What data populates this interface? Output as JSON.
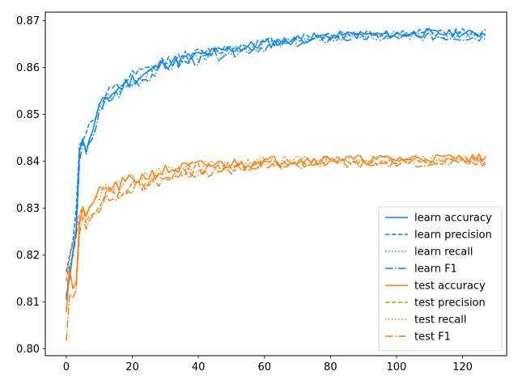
{
  "chart_data": {
    "type": "line",
    "title": "",
    "xlabel": "",
    "ylabel": "",
    "xlim": [
      -6.35,
      133.35
    ],
    "ylim": [
      0.7985,
      0.8718
    ],
    "grid": false,
    "legend_position": "lower-right",
    "x_ticks": [
      0,
      20,
      40,
      60,
      80,
      100,
      120
    ],
    "x_tick_labels": [
      "0",
      "20",
      "40",
      "60",
      "80",
      "100",
      "120"
    ],
    "y_ticks": [
      0.8,
      0.81,
      0.82,
      0.83,
      0.84,
      0.85,
      0.86,
      0.87
    ],
    "y_tick_labels": [
      "0.80",
      "0.81",
      "0.82",
      "0.83",
      "0.84",
      "0.85",
      "0.86",
      "0.87"
    ],
    "x_count": 128,
    "series": [
      {
        "name": "learn accuracy",
        "color": "#0a84f0",
        "style": "solid",
        "seed": 11,
        "offset": 0.0,
        "anchors": [
          [
            0,
            0.811
          ],
          [
            1,
            0.815
          ],
          [
            2,
            0.821
          ],
          [
            3,
            0.826
          ],
          [
            4,
            0.842
          ],
          [
            5,
            0.845
          ],
          [
            6,
            0.842
          ],
          [
            8,
            0.847
          ],
          [
            10,
            0.851
          ],
          [
            12,
            0.8535
          ],
          [
            15,
            0.855
          ],
          [
            20,
            0.8575
          ],
          [
            25,
            0.859
          ],
          [
            30,
            0.861
          ],
          [
            40,
            0.8625
          ],
          [
            50,
            0.864
          ],
          [
            60,
            0.865
          ],
          [
            70,
            0.866
          ],
          [
            80,
            0.8667
          ],
          [
            90,
            0.867
          ],
          [
            100,
            0.867
          ],
          [
            110,
            0.8673
          ],
          [
            127,
            0.8672
          ]
        ]
      },
      {
        "name": "learn precision",
        "color": "#0a84f0",
        "style": "dashed",
        "seed": 12,
        "offset": 0.0002,
        "anchors": [
          [
            0,
            0.816
          ],
          [
            1,
            0.82
          ],
          [
            2,
            0.823
          ],
          [
            3,
            0.83
          ],
          [
            4,
            0.843
          ],
          [
            5,
            0.844
          ],
          [
            6,
            0.846
          ],
          [
            7,
            0.848
          ],
          [
            10,
            0.851
          ],
          [
            12,
            0.8535
          ],
          [
            15,
            0.8552
          ],
          [
            20,
            0.8578
          ],
          [
            25,
            0.8592
          ],
          [
            30,
            0.8612
          ],
          [
            40,
            0.8627
          ],
          [
            50,
            0.8641
          ],
          [
            60,
            0.8651
          ],
          [
            70,
            0.8661
          ],
          [
            80,
            0.8667
          ],
          [
            90,
            0.867
          ],
          [
            100,
            0.8671
          ],
          [
            110,
            0.8673
          ],
          [
            127,
            0.8673
          ]
        ]
      },
      {
        "name": "learn recall",
        "color": "#0a84f0",
        "style": "dotted",
        "seed": 13,
        "offset": -0.0002,
        "anchors": [
          [
            0,
            0.811
          ],
          [
            1,
            0.815
          ],
          [
            2,
            0.821
          ],
          [
            3,
            0.826
          ],
          [
            4,
            0.842
          ],
          [
            5,
            0.845
          ],
          [
            6,
            0.842
          ],
          [
            8,
            0.847
          ],
          [
            10,
            0.851
          ],
          [
            12,
            0.8535
          ],
          [
            15,
            0.855
          ],
          [
            20,
            0.8575
          ],
          [
            25,
            0.859
          ],
          [
            30,
            0.861
          ],
          [
            40,
            0.8625
          ],
          [
            50,
            0.864
          ],
          [
            60,
            0.865
          ],
          [
            70,
            0.866
          ],
          [
            80,
            0.8667
          ],
          [
            90,
            0.867
          ],
          [
            100,
            0.867
          ],
          [
            110,
            0.8673
          ],
          [
            127,
            0.8672
          ]
        ]
      },
      {
        "name": "learn F1",
        "color": "#0a84f0",
        "style": "dashdot",
        "seed": 14,
        "offset": -0.0004,
        "anchors": [
          [
            0,
            0.811
          ],
          [
            1,
            0.818
          ],
          [
            2,
            0.82
          ],
          [
            3,
            0.825
          ],
          [
            4,
            0.84
          ],
          [
            5,
            0.844
          ],
          [
            6,
            0.843
          ],
          [
            8,
            0.846
          ],
          [
            10,
            0.85
          ],
          [
            12,
            0.853
          ],
          [
            15,
            0.8545
          ],
          [
            20,
            0.857
          ],
          [
            25,
            0.8585
          ],
          [
            30,
            0.8605
          ],
          [
            40,
            0.862
          ],
          [
            50,
            0.8637
          ],
          [
            60,
            0.8648
          ],
          [
            70,
            0.8657
          ],
          [
            80,
            0.8665
          ],
          [
            90,
            0.8668
          ],
          [
            100,
            0.8668
          ],
          [
            110,
            0.867
          ],
          [
            127,
            0.8667
          ]
        ]
      },
      {
        "name": "test accuracy",
        "color": "#ff7f0e",
        "style": "solid",
        "seed": 21,
        "offset": 0.0,
        "anchors": [
          [
            0,
            0.808
          ],
          [
            1,
            0.817
          ],
          [
            2,
            0.813
          ],
          [
            3,
            0.814
          ],
          [
            4,
            0.827
          ],
          [
            5,
            0.83
          ],
          [
            6,
            0.828
          ],
          [
            8,
            0.832
          ],
          [
            10,
            0.833
          ],
          [
            12,
            0.834
          ],
          [
            15,
            0.8345
          ],
          [
            20,
            0.836
          ],
          [
            25,
            0.837
          ],
          [
            30,
            0.838
          ],
          [
            40,
            0.839
          ],
          [
            50,
            0.8395
          ],
          [
            60,
            0.84
          ],
          [
            70,
            0.8403
          ],
          [
            80,
            0.8405
          ],
          [
            90,
            0.8403
          ],
          [
            100,
            0.8405
          ],
          [
            110,
            0.8407
          ],
          [
            127,
            0.8408
          ]
        ]
      },
      {
        "name": "test precision",
        "color": "#ff7f0e",
        "style": "dashed",
        "seed": 22,
        "offset": -0.0003,
        "anchors": [
          [
            0,
            0.815
          ],
          [
            1,
            0.82
          ],
          [
            2,
            0.823
          ],
          [
            3,
            0.824
          ],
          [
            4,
            0.829
          ],
          [
            5,
            0.831
          ],
          [
            6,
            0.827
          ],
          [
            8,
            0.83
          ],
          [
            10,
            0.832
          ],
          [
            12,
            0.833
          ],
          [
            15,
            0.8335
          ],
          [
            20,
            0.835
          ],
          [
            25,
            0.8355
          ],
          [
            30,
            0.8375
          ],
          [
            40,
            0.8385
          ],
          [
            50,
            0.839
          ],
          [
            60,
            0.8397
          ],
          [
            70,
            0.84
          ],
          [
            80,
            0.8402
          ],
          [
            90,
            0.84
          ],
          [
            100,
            0.8402
          ],
          [
            110,
            0.8404
          ],
          [
            127,
            0.8405
          ]
        ]
      },
      {
        "name": "test recall",
        "color": "#ff7f0e",
        "style": "dotted",
        "seed": 23,
        "offset": -0.0001,
        "anchors": [
          [
            0,
            0.808
          ],
          [
            1,
            0.817
          ],
          [
            2,
            0.813
          ],
          [
            3,
            0.814
          ],
          [
            4,
            0.827
          ],
          [
            5,
            0.83
          ],
          [
            6,
            0.828
          ],
          [
            8,
            0.832
          ],
          [
            10,
            0.833
          ],
          [
            12,
            0.834
          ],
          [
            15,
            0.8345
          ],
          [
            20,
            0.836
          ],
          [
            25,
            0.837
          ],
          [
            30,
            0.838
          ],
          [
            40,
            0.839
          ],
          [
            50,
            0.8395
          ],
          [
            60,
            0.84
          ],
          [
            70,
            0.8403
          ],
          [
            80,
            0.8405
          ],
          [
            90,
            0.8403
          ],
          [
            100,
            0.8405
          ],
          [
            110,
            0.8407
          ],
          [
            127,
            0.8408
          ]
        ]
      },
      {
        "name": "test F1",
        "color": "#ff7f0e",
        "style": "dashdot",
        "seed": 24,
        "offset": -0.0005,
        "anchors": [
          [
            0,
            0.802
          ],
          [
            1,
            0.812
          ],
          [
            2,
            0.811
          ],
          [
            3,
            0.813
          ],
          [
            4,
            0.825
          ],
          [
            5,
            0.829
          ],
          [
            6,
            0.826
          ],
          [
            8,
            0.83
          ],
          [
            10,
            0.831
          ],
          [
            12,
            0.832
          ],
          [
            15,
            0.833
          ],
          [
            20,
            0.8345
          ],
          [
            25,
            0.8355
          ],
          [
            30,
            0.837
          ],
          [
            40,
            0.8382
          ],
          [
            50,
            0.8388
          ],
          [
            60,
            0.8395
          ],
          [
            70,
            0.8398
          ],
          [
            80,
            0.84
          ],
          [
            90,
            0.8398
          ],
          [
            100,
            0.84
          ],
          [
            110,
            0.8402
          ],
          [
            127,
            0.84
          ]
        ]
      }
    ]
  }
}
